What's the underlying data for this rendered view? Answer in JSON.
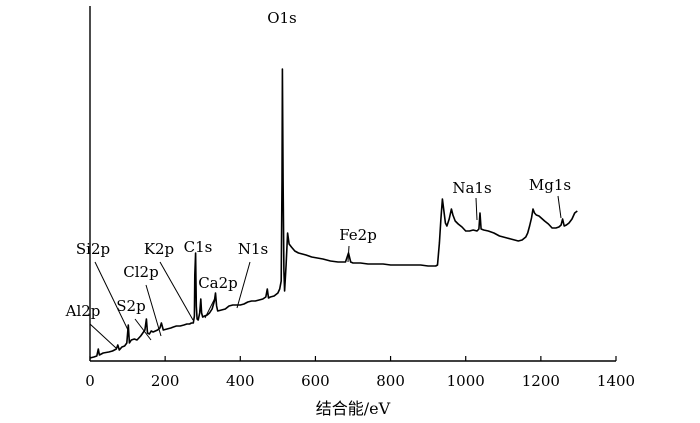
{
  "chart_data": {
    "type": "line",
    "title": "",
    "xlabel": "结合能/eV",
    "ylabel": "",
    "xlim": [
      0,
      1400
    ],
    "x_ticks": [
      0,
      200,
      400,
      600,
      800,
      1000,
      1200,
      1400
    ],
    "x_tick_labels": [
      "0",
      "200",
      "400",
      "600",
      "800",
      "1000",
      "1200",
      "1400"
    ],
    "series": [
      {
        "points": [
          [
            0,
            3
          ],
          [
            10,
            4
          ],
          [
            18,
            5
          ],
          [
            22,
            12
          ],
          [
            25,
            6
          ],
          [
            35,
            8
          ],
          [
            50,
            9
          ],
          [
            60,
            10
          ],
          [
            70,
            12
          ],
          [
            74,
            16
          ],
          [
            78,
            11
          ],
          [
            85,
            14
          ],
          [
            92,
            15
          ],
          [
            98,
            18
          ],
          [
            102,
            36
          ],
          [
            105,
            18
          ],
          [
            110,
            21
          ],
          [
            118,
            22
          ],
          [
            125,
            21
          ],
          [
            135,
            25
          ],
          [
            146,
            31
          ],
          [
            150,
            42
          ],
          [
            153,
            28
          ],
          [
            158,
            27
          ],
          [
            163,
            30
          ],
          [
            168,
            29
          ],
          [
            180,
            31
          ],
          [
            186,
            33
          ],
          [
            190,
            38
          ],
          [
            195,
            31
          ],
          [
            205,
            32
          ],
          [
            215,
            33
          ],
          [
            222,
            34
          ],
          [
            230,
            35
          ],
          [
            240,
            35
          ],
          [
            250,
            36
          ],
          [
            258,
            37
          ],
          [
            265,
            37
          ],
          [
            270,
            38
          ],
          [
            275,
            38
          ],
          [
            278,
            45
          ],
          [
            279,
            86
          ],
          [
            281,
            108
          ],
          [
            283,
            55
          ],
          [
            285,
            42
          ],
          [
            288,
            41
          ],
          [
            292,
            48
          ],
          [
            295,
            62
          ],
          [
            297,
            48
          ],
          [
            300,
            44
          ],
          [
            305,
            45
          ],
          [
            312,
            46
          ],
          [
            318,
            48
          ],
          [
            325,
            52
          ],
          [
            331,
            60
          ],
          [
            334,
            68
          ],
          [
            337,
            55
          ],
          [
            340,
            50
          ],
          [
            350,
            51
          ],
          [
            360,
            52
          ],
          [
            370,
            55
          ],
          [
            380,
            56
          ],
          [
            390,
            56
          ],
          [
            400,
            56
          ],
          [
            410,
            57
          ],
          [
            420,
            59
          ],
          [
            430,
            60
          ],
          [
            440,
            60
          ],
          [
            450,
            61
          ],
          [
            460,
            62
          ],
          [
            468,
            64
          ],
          [
            472,
            72
          ],
          [
            475,
            63
          ],
          [
            480,
            64
          ],
          [
            490,
            65
          ],
          [
            500,
            68
          ],
          [
            505,
            72
          ],
          [
            509,
            80
          ],
          [
            511,
            180
          ],
          [
            512,
            292
          ],
          [
            514,
            180
          ],
          [
            516,
            90
          ],
          [
            518,
            70
          ],
          [
            522,
            96
          ],
          [
            526,
            128
          ],
          [
            530,
            117
          ],
          [
            536,
            114
          ],
          [
            545,
            110
          ],
          [
            555,
            108
          ],
          [
            565,
            107
          ],
          [
            575,
            106
          ],
          [
            590,
            104
          ],
          [
            605,
            103
          ],
          [
            620,
            102
          ],
          [
            640,
            100
          ],
          [
            660,
            99
          ],
          [
            680,
            99
          ],
          [
            688,
            108
          ],
          [
            694,
            99
          ],
          [
            700,
            98
          ],
          [
            720,
            98
          ],
          [
            740,
            97
          ],
          [
            760,
            97
          ],
          [
            780,
            97
          ],
          [
            800,
            96
          ],
          [
            820,
            96
          ],
          [
            840,
            96
          ],
          [
            860,
            96
          ],
          [
            880,
            96
          ],
          [
            900,
            95
          ],
          [
            920,
            95
          ],
          [
            925,
            96
          ],
          [
            930,
            118
          ],
          [
            934,
            142
          ],
          [
            938,
            162
          ],
          [
            942,
            150
          ],
          [
            946,
            138
          ],
          [
            950,
            135
          ],
          [
            956,
            142
          ],
          [
            962,
            152
          ],
          [
            966,
            146
          ],
          [
            972,
            140
          ],
          [
            980,
            137
          ],
          [
            990,
            134
          ],
          [
            1000,
            130
          ],
          [
            1010,
            130
          ],
          [
            1020,
            131
          ],
          [
            1030,
            130
          ],
          [
            1035,
            132
          ],
          [
            1038,
            148
          ],
          [
            1041,
            132
          ],
          [
            1048,
            131
          ],
          [
            1060,
            130
          ],
          [
            1075,
            128
          ],
          [
            1090,
            125
          ],
          [
            1100,
            124
          ],
          [
            1110,
            123
          ],
          [
            1120,
            122
          ],
          [
            1130,
            121
          ],
          [
            1140,
            120
          ],
          [
            1150,
            121
          ],
          [
            1160,
            124
          ],
          [
            1165,
            128
          ],
          [
            1170,
            135
          ],
          [
            1175,
            143
          ],
          [
            1179,
            152
          ],
          [
            1183,
            148
          ],
          [
            1188,
            146
          ],
          [
            1195,
            145
          ],
          [
            1210,
            140
          ],
          [
            1220,
            137
          ],
          [
            1230,
            133
          ],
          [
            1240,
            133
          ],
          [
            1248,
            134
          ],
          [
            1254,
            136
          ],
          [
            1258,
            142
          ],
          [
            1262,
            135
          ],
          [
            1268,
            136
          ],
          [
            1275,
            138
          ],
          [
            1283,
            142
          ],
          [
            1290,
            148
          ],
          [
            1297,
            150
          ]
        ]
      }
    ],
    "peak_labels": [
      {
        "label": "O1s",
        "x": 512
      },
      {
        "label": "Fe2p",
        "x": 690
      },
      {
        "label": "Na1s",
        "x": 1038
      },
      {
        "label": "Mg1s",
        "x": 1258
      },
      {
        "label": "Si2p",
        "x": 102
      },
      {
        "label": "K2p",
        "x": 278
      },
      {
        "label": "C1s",
        "x": 281
      },
      {
        "label": "N1s",
        "x": 400
      },
      {
        "label": "Cl2p",
        "x": 190
      },
      {
        "label": "Ca2p",
        "x": 334
      },
      {
        "label": "S2p",
        "x": 150
      },
      {
        "label": "Al2p",
        "x": 74
      }
    ]
  }
}
